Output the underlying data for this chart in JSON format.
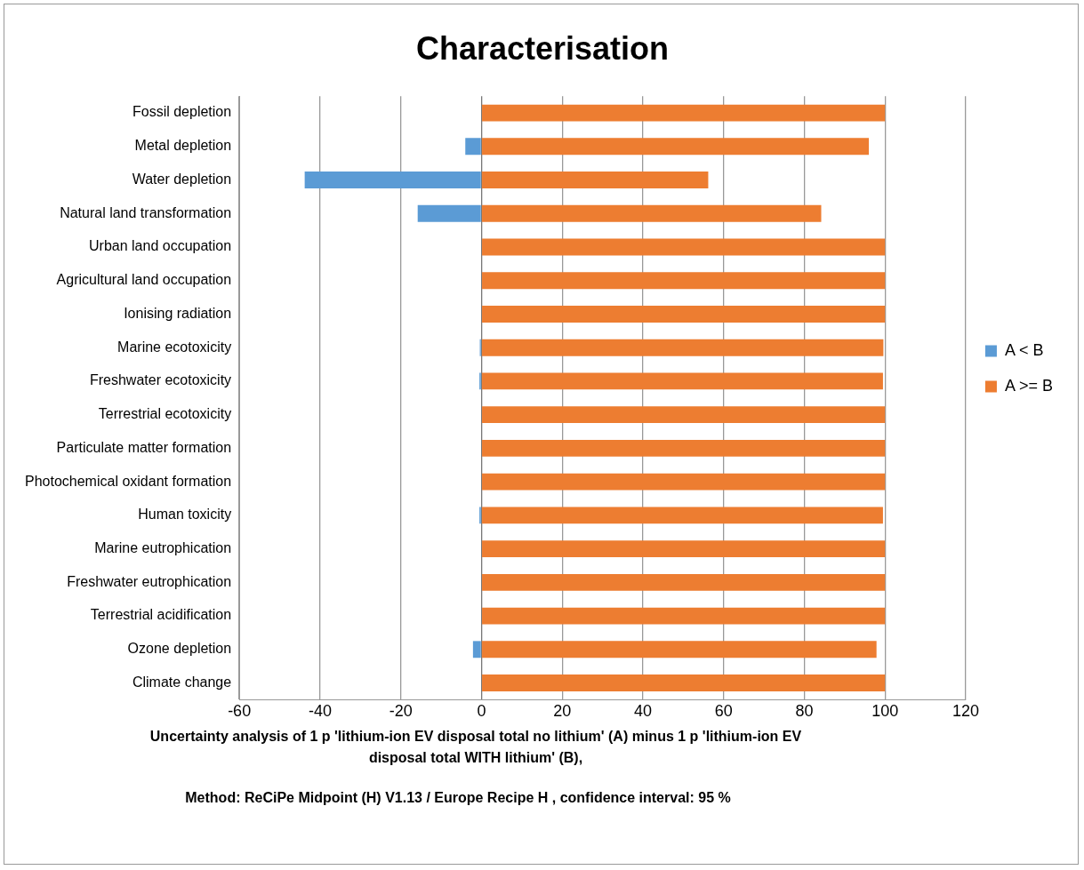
{
  "chart_data": {
    "type": "bar",
    "orientation": "horizontal",
    "stacked": true,
    "title": "Characterisation",
    "xlabel": "Uncertainty analysis of 1 p 'lithium-ion EV disposal total no lithium' (A) minus 1 p 'lithium-ion EV disposal total WITH lithium' (B),",
    "annotations": [
      "Method: ReCiPe Midpoint (H) V1.13 / Europe Recipe H , confidence interval: 95 %"
    ],
    "categories": [
      "Fossil depletion",
      "Metal depletion",
      "Water depletion",
      "Natural land transformation",
      "Urban land occupation",
      "Agricultural land occupation",
      "Ionising radiation",
      "Marine ecotoxicity",
      "Freshwater ecotoxicity",
      "Terrestrial ecotoxicity",
      "Particulate matter formation",
      "Photochemical oxidant formation",
      "Human toxicity",
      "Marine eutrophication",
      "Freshwater eutrophication",
      "Terrestrial acidification",
      "Ozone depletion",
      "Climate change"
    ],
    "series": [
      {
        "name": "A < B",
        "color": "#5b9bd5",
        "values": [
          0,
          -4,
          -43.8,
          -15.8,
          0,
          0,
          0,
          -0.4,
          -0.5,
          0,
          0,
          0,
          -0.5,
          0,
          0,
          0,
          -2.1,
          0
        ]
      },
      {
        "name": "A >= B",
        "color": "#ed7d31",
        "values": [
          100,
          96,
          56.2,
          84.2,
          100,
          100,
          100,
          99.6,
          99.5,
          100,
          100,
          100,
          99.5,
          100,
          100,
          100,
          97.9,
          100
        ]
      }
    ],
    "xlim": [
      -60,
      120
    ],
    "xticks": [
      -60,
      -40,
      -20,
      0,
      20,
      40,
      60,
      80,
      100,
      120
    ],
    "grid": "x",
    "legend": "right"
  }
}
